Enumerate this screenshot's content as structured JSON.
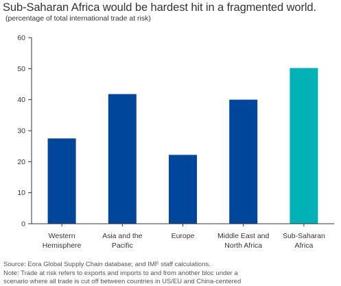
{
  "chart_data": {
    "type": "bar",
    "title": "Sub-Saharan Africa would be hardest hit in a fragmented world.",
    "subtitle": "(percentage of total international trade at risk)",
    "categories": [
      [
        "Western",
        "Hemisphere"
      ],
      [
        "Asia and the",
        "Pacific"
      ],
      [
        "Europe"
      ],
      [
        "Middle East and",
        "North Africa"
      ],
      [
        "Sub-Saharan",
        "Africa"
      ]
    ],
    "values": [
      27.5,
      41.8,
      22.2,
      40.0,
      50.2
    ],
    "colors": [
      "#00479b",
      "#00479b",
      "#00479b",
      "#00479b",
      "#00b2b5"
    ],
    "ylim": [
      0,
      60
    ],
    "yticks": [
      0,
      10,
      20,
      30,
      40,
      50,
      60
    ],
    "grid": false,
    "xlabel": "",
    "ylabel": ""
  },
  "footer": {
    "source": "Source: Eora Global Supply Chain database; and IMF staff calculations.",
    "note_line1": "Note: Trade at risk refers to exports and imports to and from another bloc under a",
    "note_line2": "scenario where all trade is cut off between countries in US/EU and China-centered"
  }
}
